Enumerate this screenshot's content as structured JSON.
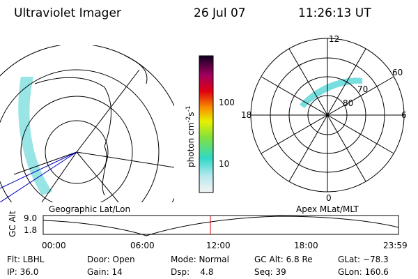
{
  "header": {
    "title": "Ultraviolet Imager",
    "date": "26 Jul 07",
    "time": "11:26:13 UT"
  },
  "left_map": {
    "label": "Geographic Lat/Lon"
  },
  "right_map": {
    "label": "Apex MLat/MLT",
    "mlt_labels": [
      "12",
      "18",
      "6",
      "0"
    ],
    "lat_labels": [
      "60",
      "70",
      "80"
    ]
  },
  "colorbar": {
    "unit": "photon cm",
    "exp1": "-2",
    "unit2": "s",
    "exp2": "-1",
    "ticks": [
      "100",
      "10"
    ]
  },
  "timeline": {
    "y_label": "GC Alt",
    "y_ticks": [
      "9.0",
      "1.8"
    ],
    "x_ticks": [
      "00:00",
      "06:00",
      "12:00",
      "18:00",
      "23:59"
    ]
  },
  "info": {
    "rows": [
      [
        "Flt: LBHL",
        "Door: Open",
        "Mode: Normal",
        "GC Alt: 6.8 Re",
        "GLat: −78.3"
      ],
      [
        "IP: 36.0",
        "Gain: 14",
        "Dsp:    4.8",
        "Seq: 39",
        "GLon: 160.6"
      ]
    ]
  }
}
